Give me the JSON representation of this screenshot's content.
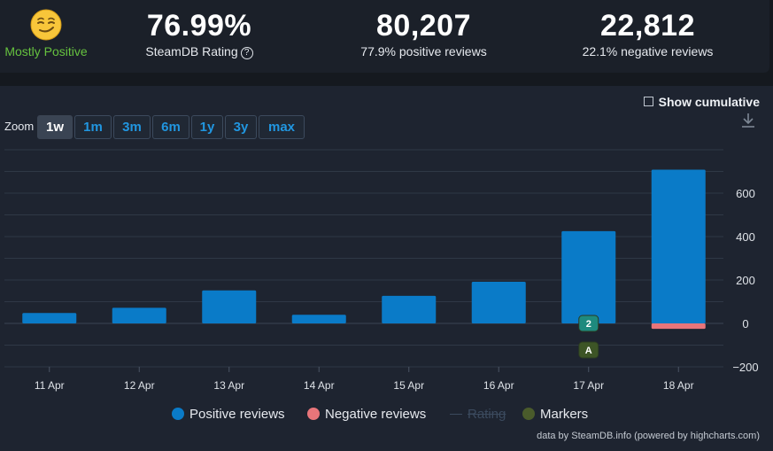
{
  "summary": {
    "sentiment": "Mostly Positive",
    "rating_value": "76.99%",
    "rating_label": "SteamDB Rating",
    "rating_help": "?",
    "total_value": "80,207",
    "total_label": "77.9% positive reviews",
    "negative_value": "22,812",
    "negative_label": "22.1% negative reviews",
    "colors": {
      "positive": "#66c23f"
    },
    "emoji_icon": "smirking-face-icon"
  },
  "controls": {
    "show_cumulative": "Show cumulative",
    "show_cumulative_checked": false,
    "zoom_label": "Zoom",
    "zoom_buttons": [
      "1w",
      "1m",
      "3m",
      "6m",
      "1y",
      "3y",
      "max"
    ],
    "zoom_active": "1w",
    "download_icon": "download-icon"
  },
  "chart_data": {
    "type": "bar",
    "categories": [
      "11 Apr",
      "12 Apr",
      "13 Apr",
      "14 Apr",
      "15 Apr",
      "16 Apr",
      "17 Apr",
      "18 Apr"
    ],
    "series": [
      {
        "name": "Positive reviews",
        "color": "#0a7bc8",
        "values": [
          48,
          72,
          152,
          40,
          127,
          192,
          425,
          708
        ]
      },
      {
        "name": "Negative reviews",
        "color": "#e8757a",
        "values": [
          0,
          0,
          0,
          0,
          0,
          0,
          0,
          -25
        ]
      }
    ],
    "yticks": [
      600,
      400,
      200,
      0,
      -200
    ],
    "tick_labels": [
      "600",
      "400",
      "200",
      "0",
      "−200"
    ],
    "ylim": [
      -200,
      800
    ],
    "grid": true,
    "markers": [
      {
        "category": "17 Apr",
        "label": "2",
        "color": "#1e8a7e"
      },
      {
        "category": "17 Apr",
        "label": "A",
        "color": "#3d5526"
      }
    ],
    "legend": [
      {
        "name": "Positive reviews",
        "color": "#0a7bc8",
        "enabled": true
      },
      {
        "name": "Negative reviews",
        "color": "#e8757a",
        "enabled": true
      },
      {
        "name": "Rating",
        "color": "#3b4a5e",
        "enabled": false
      },
      {
        "name": "Markers",
        "color": "#4a5b2b",
        "enabled": true
      }
    ],
    "legend_position": "bottom-center"
  },
  "credit": "data by SteamDB.info (powered by highcharts.com)"
}
